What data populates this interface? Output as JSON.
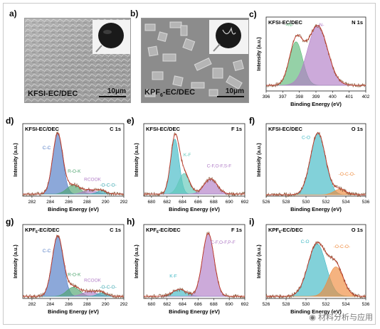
{
  "figure": {
    "watermark": "材料分析与应用",
    "sem": [
      {
        "label": "a)",
        "sample": "KFSI-EC/DEC",
        "scale": "10μm"
      },
      {
        "label": "b)",
        "sample_main": "KPF",
        "sample_sub": "6",
        "sample_tail": "-EC/DEC",
        "scale": "10μm"
      }
    ],
    "panels": [
      {
        "id": "c",
        "label": "c)",
        "sample": "KFSI-EC/DEC",
        "sub": "",
        "core": "N 1s",
        "xrange": [
          396,
          402
        ],
        "ticks": [
          396,
          397,
          398,
          399,
          400,
          401,
          402
        ],
        "xlabel": "Binding Energy (eV)",
        "ylabel": "Intensity (a.u.)",
        "peaks": [
          {
            "name": "=N-",
            "center": 397.8,
            "amp": 0.62,
            "sigma": 0.4,
            "color": "#5cb978",
            "lx": 397.4,
            "ly": 0.92
          },
          {
            "name": "-N-",
            "center": 399.1,
            "amp": 0.85,
            "sigma": 0.6,
            "color": "#b07cc6",
            "lx": 399.3,
            "ly": 0.92
          }
        ],
        "baseline": 0.08
      },
      {
        "id": "d",
        "label": "d)",
        "sample": "KFSI-EC/DEC",
        "sub": "",
        "core": "C 1s",
        "xrange": [
          281,
          292
        ],
        "ticks": [
          282,
          284,
          286,
          288,
          290,
          292
        ],
        "xlabel": "Binding Energy (eV)",
        "ylabel": "Intensity (a.u.)",
        "peaks": [
          {
            "name": "C-C",
            "center": 284.8,
            "amp": 0.88,
            "sigma": 0.55,
            "color": "#4f79c4",
            "lx": 283.6,
            "ly": 0.68
          },
          {
            "name": "R-O-K",
            "center": 286.5,
            "amp": 0.13,
            "sigma": 0.7,
            "color": "#4fa56f",
            "lx": 286.6,
            "ly": 0.34
          },
          {
            "name": "RCOOK",
            "center": 288.3,
            "amp": 0.06,
            "sigma": 0.7,
            "color": "#b07cc6",
            "lx": 288.6,
            "ly": 0.22
          },
          {
            "name": "-O-C-O-",
            "center": 289.6,
            "amp": 0.05,
            "sigma": 0.5,
            "color": "#3aa7b0",
            "lx": 290.3,
            "ly": 0.14
          }
        ],
        "baseline": 0.03
      },
      {
        "id": "e",
        "label": "e)",
        "sample": "KFSI-EC/DEC",
        "sub": "",
        "core": "F 1s",
        "xrange": [
          679,
          692
        ],
        "ticks": [
          680,
          682,
          684,
          686,
          688,
          690,
          692
        ],
        "xlabel": "Binding Energy (eV)",
        "ylabel": "Intensity (a.u.)",
        "peaks": [
          {
            "name": "",
            "center": 683.0,
            "amp": 0.8,
            "sigma": 0.55,
            "color": "#3fb8c4",
            "lx": 0,
            "ly": 0
          },
          {
            "name": "K-F",
            "center": 684.2,
            "amp": 0.3,
            "sigma": 0.7,
            "color": "#5fc7b9",
            "lx": 684.6,
            "ly": 0.58
          },
          {
            "name": "C-F,O-F,S-F",
            "center": 687.6,
            "amp": 0.22,
            "sigma": 0.85,
            "color": "#b07cc6",
            "lx": 688.7,
            "ly": 0.42
          }
        ],
        "baseline": 0.03
      },
      {
        "id": "f",
        "label": "f)",
        "sample": "KFSI-EC/DEC",
        "sub": "",
        "core": "O 1s",
        "xrange": [
          526,
          536
        ],
        "ticks": [
          526,
          528,
          530,
          532,
          534,
          536
        ],
        "xlabel": "Binding Energy (eV)",
        "ylabel": "Intensity (a.u.)",
        "peaks": [
          {
            "name": "C-O",
            "center": 531.2,
            "amp": 0.9,
            "sigma": 0.75,
            "color": "#3fb8c4",
            "lx": 530.0,
            "ly": 0.83
          },
          {
            "name": "-O-C-O-",
            "center": 533.4,
            "amp": 0.08,
            "sigma": 0.6,
            "color": "#ef8a3c",
            "lx": 534.1,
            "ly": 0.3
          }
        ],
        "baseline": 0.02
      },
      {
        "id": "g",
        "label": "g)",
        "sample": "KPF",
        "sub": "6",
        "sample_tail": "-EC/DEC",
        "core": "C 1s",
        "xrange": [
          281,
          292
        ],
        "ticks": [
          282,
          284,
          286,
          288,
          290,
          292
        ],
        "xlabel": "Binding Energy (eV)",
        "ylabel": "Intensity (a.u.)",
        "peaks": [
          {
            "name": "C-C",
            "center": 284.8,
            "amp": 0.86,
            "sigma": 0.6,
            "color": "#4f79c4",
            "lx": 283.6,
            "ly": 0.66
          },
          {
            "name": "R-O-K",
            "center": 286.5,
            "amp": 0.13,
            "sigma": 0.7,
            "color": "#4fa56f",
            "lx": 286.6,
            "ly": 0.32
          },
          {
            "name": "RCOOK",
            "center": 288.3,
            "amp": 0.07,
            "sigma": 0.8,
            "color": "#b07cc6",
            "lx": 288.6,
            "ly": 0.24
          },
          {
            "name": "-O-C-O-",
            "center": 289.6,
            "amp": 0.05,
            "sigma": 0.5,
            "color": "#3aa7b0",
            "lx": 290.3,
            "ly": 0.14
          }
        ],
        "baseline": 0.03
      },
      {
        "id": "h",
        "label": "h)",
        "sample": "KPF",
        "sub": "6",
        "sample_tail": "-EC/DEC",
        "core": "F 1s",
        "xrange": [
          679,
          692
        ],
        "ticks": [
          680,
          682,
          684,
          686,
          688,
          690,
          692
        ],
        "xlabel": "Binding Energy (eV)",
        "ylabel": "Intensity (a.u.)",
        "peaks": [
          {
            "name": "K-F",
            "center": 683.6,
            "amp": 0.1,
            "sigma": 0.9,
            "color": "#3fb8c4",
            "lx": 682.8,
            "ly": 0.3
          },
          {
            "name": "C-F,O-F,P-F",
            "center": 687.3,
            "amp": 0.9,
            "sigma": 0.75,
            "color": "#b07cc6",
            "lx": 689.2,
            "ly": 0.78
          }
        ],
        "baseline": 0.03
      },
      {
        "id": "i",
        "label": "i)",
        "sample": "KPF",
        "sub": "6",
        "sample_tail": "-EC/DEC",
        "core": "O 1s",
        "xrange": [
          526,
          536
        ],
        "ticks": [
          526,
          528,
          530,
          532,
          534,
          536
        ],
        "xlabel": "Binding Energy (eV)",
        "ylabel": "Intensity (a.u.)",
        "peaks": [
          {
            "name": "C-O",
            "center": 531.1,
            "amp": 0.75,
            "sigma": 0.9,
            "color": "#3fb8c4",
            "lx": 529.9,
            "ly": 0.79
          },
          {
            "name": "-O-C-O-",
            "center": 533.0,
            "amp": 0.42,
            "sigma": 0.75,
            "color": "#ef8a3c",
            "lx": 533.6,
            "ly": 0.72
          }
        ],
        "baseline": 0.03
      }
    ]
  }
}
